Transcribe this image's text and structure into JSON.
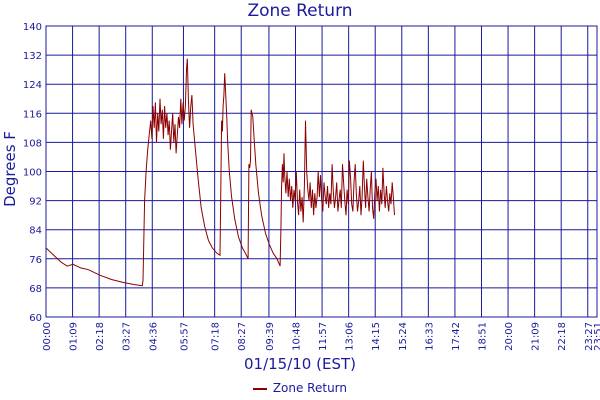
{
  "chart_data": {
    "type": "line",
    "title": "Zone Return",
    "xlabel": "01/15/10 (EST)",
    "ylabel": "Degrees F",
    "ylim": [
      60,
      140
    ],
    "yticks": [
      60,
      68,
      76,
      84,
      92,
      100,
      108,
      116,
      124,
      132,
      140
    ],
    "xlim_minutes": [
      0,
      1431
    ],
    "xtick_labels": [
      "00:00",
      "01:09",
      "02:18",
      "03:27",
      "04:36",
      "05:57",
      "07:18",
      "08:27",
      "09:39",
      "10:48",
      "11:57",
      "13:06",
      "14:15",
      "15:24",
      "16:33",
      "17:42",
      "18:51",
      "20:00",
      "21:09",
      "22:18",
      "23:27",
      "23:51"
    ],
    "xtick_minutes": [
      0,
      69,
      138,
      207,
      276,
      357,
      438,
      507,
      579,
      648,
      717,
      786,
      855,
      924,
      993,
      1062,
      1131,
      1200,
      1269,
      1338,
      1407,
      1431
    ],
    "grid": true,
    "legend_position": "bottom-center",
    "series": [
      {
        "name": "Zone Return",
        "color": "#8b0000",
        "points": [
          [
            0,
            79
          ],
          [
            20,
            77
          ],
          [
            40,
            75
          ],
          [
            55,
            74
          ],
          [
            70,
            74.5
          ],
          [
            90,
            73.5
          ],
          [
            110,
            73
          ],
          [
            140,
            71.5
          ],
          [
            170,
            70.3
          ],
          [
            200,
            69.5
          ],
          [
            230,
            68.9
          ],
          [
            250,
            68.6
          ],
          [
            252,
            70
          ],
          [
            256,
            92
          ],
          [
            260,
            100
          ],
          [
            264,
            106
          ],
          [
            268,
            110
          ],
          [
            272,
            114
          ],
          [
            275,
            109
          ],
          [
            278,
            118
          ],
          [
            281,
            112
          ],
          [
            284,
            119
          ],
          [
            287,
            108
          ],
          [
            290,
            116
          ],
          [
            293,
            111
          ],
          [
            296,
            120
          ],
          [
            299,
            113
          ],
          [
            302,
            117
          ],
          [
            305,
            109
          ],
          [
            308,
            118
          ],
          [
            311,
            112
          ],
          [
            314,
            116
          ],
          [
            317,
            110
          ],
          [
            320,
            114
          ],
          [
            323,
            106
          ],
          [
            326,
            111
          ],
          [
            329,
            116
          ],
          [
            332,
            108
          ],
          [
            335,
            113
          ],
          [
            338,
            105
          ],
          [
            341,
            110
          ],
          [
            344,
            115
          ],
          [
            347,
            112
          ],
          [
            350,
            120
          ],
          [
            353,
            113
          ],
          [
            356,
            119
          ],
          [
            359,
            114
          ],
          [
            362,
            118
          ],
          [
            365,
            128
          ],
          [
            367,
            131
          ],
          [
            370,
            119
          ],
          [
            373,
            112
          ],
          [
            376,
            118
          ],
          [
            379,
            121
          ],
          [
            382,
            113
          ],
          [
            388,
            106
          ],
          [
            395,
            98
          ],
          [
            403,
            90
          ],
          [
            412,
            85
          ],
          [
            422,
            81
          ],
          [
            432,
            79
          ],
          [
            444,
            77.5
          ],
          [
            452,
            77
          ],
          [
            454,
            95
          ],
          [
            456,
            114
          ],
          [
            458,
            111
          ],
          [
            460,
            118
          ],
          [
            462,
            121
          ],
          [
            464,
            127
          ],
          [
            466,
            123
          ],
          [
            469,
            116
          ],
          [
            472,
            108
          ],
          [
            476,
            100
          ],
          [
            482,
            93
          ],
          [
            490,
            87
          ],
          [
            500,
            82
          ],
          [
            510,
            79
          ],
          [
            518,
            77.5
          ],
          [
            525,
            76
          ],
          [
            527,
            102
          ],
          [
            529,
            101
          ],
          [
            531,
            103
          ],
          [
            533,
            117
          ],
          [
            535,
            116
          ],
          [
            537,
            115
          ],
          [
            540,
            110
          ],
          [
            545,
            102
          ],
          [
            552,
            94
          ],
          [
            560,
            88
          ],
          [
            570,
            83
          ],
          [
            580,
            80
          ],
          [
            590,
            77.5
          ],
          [
            600,
            76
          ],
          [
            608,
            74
          ],
          [
            610,
            84
          ],
          [
            612,
            96
          ],
          [
            614,
            102
          ],
          [
            616,
            97
          ],
          [
            618,
            105
          ],
          [
            620,
            99
          ],
          [
            623,
            94
          ],
          [
            626,
            100
          ],
          [
            629,
            93
          ],
          [
            632,
            98
          ],
          [
            635,
            92
          ],
          [
            638,
            96
          ],
          [
            641,
            90
          ],
          [
            644,
            95
          ],
          [
            647,
            92
          ],
          [
            650,
            100
          ],
          [
            653,
            92
          ],
          [
            656,
            88
          ],
          [
            659,
            95
          ],
          [
            662,
            89
          ],
          [
            665,
            93
          ],
          [
            668,
            86
          ],
          [
            671,
            96
          ],
          [
            674,
            114
          ],
          [
            677,
            100
          ],
          [
            680,
            95
          ],
          [
            683,
            92
          ],
          [
            686,
            97
          ],
          [
            689,
            90
          ],
          [
            692,
            95
          ],
          [
            695,
            88
          ],
          [
            698,
            94
          ],
          [
            701,
            90
          ],
          [
            704,
            93
          ],
          [
            707,
            100
          ],
          [
            710,
            93
          ],
          [
            713,
            99
          ],
          [
            716,
            92
          ],
          [
            719,
            89
          ],
          [
            722,
            97
          ],
          [
            725,
            93
          ],
          [
            728,
            91
          ],
          [
            731,
            96
          ],
          [
            734,
            90
          ],
          [
            737,
            94
          ],
          [
            740,
            91
          ],
          [
            743,
            102
          ],
          [
            746,
            95
          ],
          [
            749,
            90
          ],
          [
            752,
            93
          ],
          [
            755,
            97
          ],
          [
            758,
            89
          ],
          [
            761,
            92
          ],
          [
            764,
            95
          ],
          [
            767,
            90
          ],
          [
            770,
            102
          ],
          [
            773,
            97
          ],
          [
            776,
            92
          ],
          [
            779,
            88
          ],
          [
            782,
            95
          ],
          [
            785,
            91
          ],
          [
            788,
            103
          ],
          [
            791,
            98
          ],
          [
            794,
            91
          ],
          [
            797,
            89
          ],
          [
            800,
            97
          ],
          [
            803,
            102
          ],
          [
            806,
            94
          ],
          [
            809,
            89
          ],
          [
            812,
            92
          ],
          [
            815,
            96
          ],
          [
            818,
            88
          ],
          [
            821,
            93
          ],
          [
            824,
            103
          ],
          [
            827,
            96
          ],
          [
            830,
            90
          ],
          [
            833,
            98
          ],
          [
            836,
            93
          ],
          [
            839,
            89
          ],
          [
            842,
            95
          ],
          [
            845,
            100
          ],
          [
            848,
            90
          ],
          [
            851,
            87
          ],
          [
            854,
            94
          ],
          [
            857,
            98
          ],
          [
            860,
            92
          ],
          [
            863,
            96
          ],
          [
            866,
            89
          ],
          [
            869,
            95
          ],
          [
            872,
            91
          ],
          [
            875,
            101
          ],
          [
            878,
            94
          ],
          [
            881,
            90
          ],
          [
            884,
            96
          ],
          [
            887,
            92
          ],
          [
            890,
            89
          ],
          [
            893,
            94
          ],
          [
            896,
            91
          ],
          [
            899,
            97
          ],
          [
            902,
            93
          ],
          [
            905,
            88
          ]
        ]
      }
    ]
  },
  "legend": {
    "label": "Zone Return"
  }
}
